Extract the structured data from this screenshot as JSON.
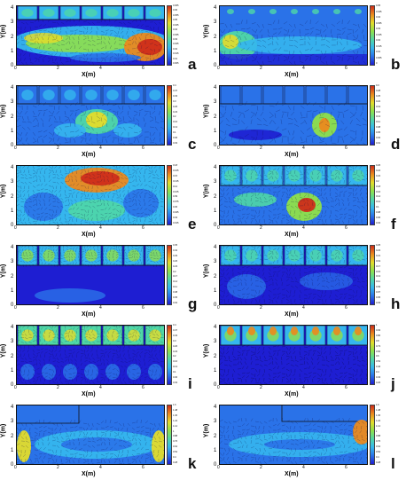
{
  "x_axis_label": "X(m)",
  "y_axis_label": "Y(m)",
  "x_ticks": [
    "0",
    "2",
    "4",
    "6"
  ],
  "y_ticks": [
    "0",
    "1",
    "2",
    "3",
    "4"
  ],
  "colormap": [
    "#1e1ed2",
    "#2a72e8",
    "#35b6ee",
    "#4fd7a6",
    "#8fe04a",
    "#e3dc2b",
    "#eb8a1e",
    "#cf2d1a"
  ],
  "panels": [
    {
      "letter": "a",
      "colorbar_labels": [
        "0.065",
        "0.06",
        "0.055",
        "0.05",
        "0.045",
        "0.04",
        "0.035",
        "0.03",
        "0.025",
        "0.02",
        "0.015",
        "0.01",
        "0.005"
      ]
    },
    {
      "letter": "b",
      "colorbar_labels": [
        "0.05",
        "0.045",
        "0.04",
        "0.035",
        "0.03",
        "0.025",
        "0.02",
        "0.015",
        "0.01",
        "0.005",
        "0"
      ]
    },
    {
      "letter": "c",
      "colorbar_labels": [
        "0.4",
        "0.37",
        "0.33",
        "0.3",
        "0.26",
        "0.23",
        "0.2",
        "0.16",
        "0.13",
        "0.1",
        "0.06",
        "0.03"
      ]
    },
    {
      "letter": "d",
      "colorbar_labels": [
        "0.3",
        "0.28",
        "0.25",
        "0.22",
        "0.19",
        "0.16",
        "0.13",
        "0.11",
        "0.08",
        "0.05",
        "0.02",
        "0.01"
      ]
    },
    {
      "letter": "e",
      "colorbar_labels": [
        "0.18",
        "0.165",
        "0.15",
        "0.135",
        "0.12",
        "0.105",
        "0.09",
        "0.075",
        "0.06",
        "0.045",
        "0.03",
        "0.015"
      ]
    },
    {
      "letter": "f",
      "colorbar_labels": [
        "0.26",
        "0.24",
        "0.22",
        "0.2",
        "0.18",
        "0.16",
        "0.14",
        "0.12",
        "0.1",
        "0.08",
        "0.06",
        "0.04"
      ]
    },
    {
      "letter": "g",
      "colorbar_labels": [
        "0.35",
        "0.32",
        "0.29",
        "0.26",
        "0.23",
        "0.2",
        "0.17",
        "0.14",
        "0.11",
        "0.08",
        "0.05",
        "0.02"
      ]
    },
    {
      "letter": "h",
      "colorbar_labels": [
        "0.25",
        "0.23",
        "0.21",
        "0.19",
        "0.17",
        "0.15",
        "0.13",
        "0.11",
        "0.09",
        "0.07",
        "0.05",
        "0.03"
      ]
    },
    {
      "letter": "i",
      "colorbar_labels": [
        "0.4",
        "0.37",
        "0.33",
        "0.3",
        "0.26",
        "0.23",
        "0.2",
        "0.16",
        "0.13",
        "0.1",
        "0.06",
        "0.03"
      ]
    },
    {
      "letter": "j",
      "colorbar_labels": [
        "1",
        "0.93",
        "0.86",
        "0.8",
        "0.73",
        "0.66",
        "0.6",
        "0.53",
        "0.46",
        "0.4",
        "0.33",
        "0.26"
      ]
    },
    {
      "letter": "k",
      "colorbar_labels": [
        "1.6",
        "1.48",
        "1.36",
        "1.24",
        "1.12",
        "1",
        "0.88",
        "0.76",
        "0.64",
        "0.52",
        "0.4",
        "0.28"
      ]
    },
    {
      "letter": "l",
      "colorbar_labels": [
        "1.6",
        "1.48",
        "1.36",
        "1.24",
        "1.12",
        "1",
        "0.88",
        "0.76",
        "0.64",
        "0.52",
        "0.4",
        "0.28"
      ]
    }
  ]
}
